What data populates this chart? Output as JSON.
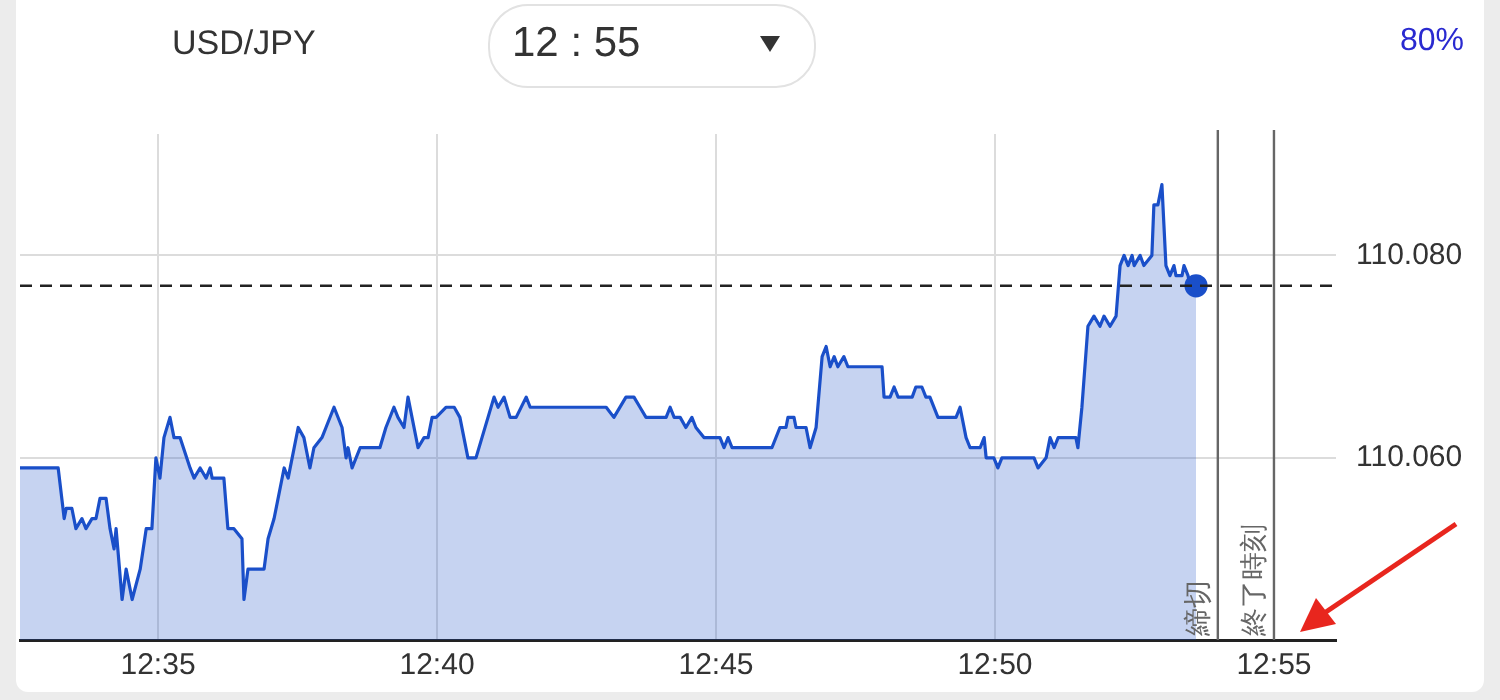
{
  "chart_data": {
    "type": "area",
    "title": "USD/JPY",
    "annotations": [
      "12 : 55",
      "80%"
    ],
    "xlim": [
      12.5421,
      12.9352
    ],
    "ylim": [
      110.042,
      110.092
    ],
    "xticks": [
      {
        "value": 12.58333,
        "label": "12:35"
      },
      {
        "value": 12.66667,
        "label": "12:40"
      },
      {
        "value": 12.75,
        "label": "12:45"
      },
      {
        "value": 12.83333,
        "label": "12:50"
      },
      {
        "value": 12.91667,
        "label": "12:55"
      }
    ],
    "yticks": [
      {
        "value": 110.06,
        "label": "110.060"
      },
      {
        "value": 110.08,
        "label": "110.080"
      }
    ],
    "grid": true,
    "ref_lines": [
      {
        "axis": "y",
        "value": 110.077,
        "label": null,
        "color": "#222222",
        "line_style": "dashed"
      },
      {
        "axis": "x",
        "value": 12.8999,
        "label": "締切",
        "color": "#666666"
      },
      {
        "axis": "x",
        "value": 12.91667,
        "label": "終了時刻",
        "color": "#666666"
      }
    ],
    "series": [
      {
        "color": "#1a4fc9",
        "marker": "none",
        "x": [
          12.5421,
          12.5535,
          12.5553,
          12.5559,
          12.5576,
          12.5588,
          12.5606,
          12.5618,
          12.5636,
          12.5648,
          12.566,
          12.5678,
          12.569,
          12.5702,
          12.5708,
          12.5726,
          12.5738,
          12.5756,
          12.578,
          12.5798,
          12.5815,
          12.5827,
          12.5839,
          12.5851,
          12.5869,
          12.5881,
          12.5899,
          12.5929,
          12.5941,
          12.5959,
          12.5977,
          12.5989,
          12.5995,
          12.603,
          12.6042,
          12.606,
          12.6084,
          12.609,
          12.6102,
          12.615,
          12.6162,
          12.618,
          12.621,
          12.6222,
          12.6252,
          12.6269,
          12.6287,
          12.6299,
          12.6323,
          12.6335,
          12.6359,
          12.6383,
          12.6395,
          12.6401,
          12.6413,
          12.6437,
          12.6496,
          12.6514,
          12.6538,
          12.655,
          12.6568,
          12.658,
          12.661,
          12.6628,
          12.664,
          12.6652,
          12.6664,
          12.6694,
          12.6718,
          12.6735,
          12.6759,
          12.6783,
          12.6837,
          12.6849,
          12.6867,
          12.6885,
          12.6903,
          12.6933,
          12.6945,
          12.7172,
          12.7195,
          12.7231,
          12.7255,
          12.7273,
          12.7291,
          12.7351,
          12.7363,
          12.7375,
          12.7393,
          12.741,
          12.7428,
          12.744,
          12.7464,
          12.7512,
          12.7524,
          12.7536,
          12.7548,
          12.7667,
          12.7691,
          12.7709,
          12.7715,
          12.7733,
          12.7739,
          12.7769,
          12.7781,
          12.7799,
          12.7817,
          12.7829,
          12.7841,
          12.7853,
          12.7864,
          12.7882,
          12.7894,
          12.7996,
          12.8002,
          12.802,
          12.8032,
          12.8044,
          12.8086,
          12.8097,
          12.8115,
          12.8127,
          12.8139,
          12.8163,
          12.8217,
          12.8229,
          12.8247,
          12.8259,
          12.8289,
          12.8301,
          12.8307,
          12.833,
          12.8342,
          12.8354,
          12.845,
          12.8462,
          12.8486,
          12.8498,
          12.851,
          12.8522,
          12.8575,
          12.8581,
          12.8593,
          12.8611,
          12.8629,
          12.8647,
          12.8659,
          12.8677,
          12.8695,
          12.8707,
          12.8719,
          12.8731,
          12.8743,
          12.8749,
          12.8767,
          12.8778,
          12.8802,
          12.8808,
          12.882,
          12.8832,
          12.8838,
          12.8844,
          12.8856,
          12.8868,
          12.8874,
          12.8892,
          12.8898,
          12.891,
          12.8916,
          12.8934
        ],
        "values": [
          110.059,
          110.059,
          110.054,
          110.055,
          110.055,
          110.053,
          110.054,
          110.053,
          110.054,
          110.054,
          110.056,
          110.056,
          110.053,
          110.051,
          110.053,
          110.046,
          110.049,
          110.046,
          110.049,
          110.053,
          110.053,
          110.06,
          110.058,
          110.062,
          110.064,
          110.062,
          110.062,
          110.059,
          110.058,
          110.059,
          110.058,
          110.059,
          110.058,
          110.058,
          110.053,
          110.053,
          110.052,
          110.046,
          110.049,
          110.049,
          110.052,
          110.054,
          110.059,
          110.058,
          110.063,
          110.062,
          110.059,
          110.061,
          110.062,
          110.063,
          110.065,
          110.063,
          110.06,
          110.061,
          110.059,
          110.061,
          110.061,
          110.063,
          110.065,
          110.064,
          110.063,
          110.066,
          110.061,
          110.062,
          110.062,
          110.064,
          110.064,
          110.065,
          110.065,
          110.064,
          110.06,
          110.06,
          110.066,
          110.065,
          110.066,
          110.064,
          110.064,
          110.066,
          110.065,
          110.065,
          110.064,
          110.066,
          110.066,
          110.065,
          110.064,
          110.064,
          110.065,
          110.064,
          110.064,
          110.063,
          110.064,
          110.063,
          110.062,
          110.062,
          110.061,
          110.062,
          110.061,
          110.061,
          110.063,
          110.063,
          110.064,
          110.064,
          110.063,
          110.063,
          110.061,
          110.063,
          110.07,
          110.071,
          110.069,
          110.07,
          110.069,
          110.07,
          110.069,
          110.069,
          110.066,
          110.066,
          110.067,
          110.066,
          110.066,
          110.067,
          110.067,
          110.066,
          110.066,
          110.064,
          110.064,
          110.065,
          110.062,
          110.061,
          110.061,
          110.062,
          110.06,
          110.06,
          110.059,
          110.06,
          110.06,
          110.059,
          110.06,
          110.062,
          110.061,
          110.062,
          110.062,
          110.061,
          110.065,
          110.073,
          110.074,
          110.073,
          110.074,
          110.073,
          110.074,
          110.079,
          110.08,
          110.079,
          110.08,
          110.079,
          110.08,
          110.079,
          110.08,
          110.085,
          110.085,
          110.087,
          110.083,
          110.079,
          110.078,
          110.079,
          110.078,
          110.078,
          110.079,
          110.078,
          110.077,
          110.077
        ]
      },
      {
        "type": "scatter",
        "color": "#1a4fc9",
        "marker": "circle",
        "x": [
          12.8934
        ],
        "values": [
          110.077
        ]
      }
    ]
  }
}
